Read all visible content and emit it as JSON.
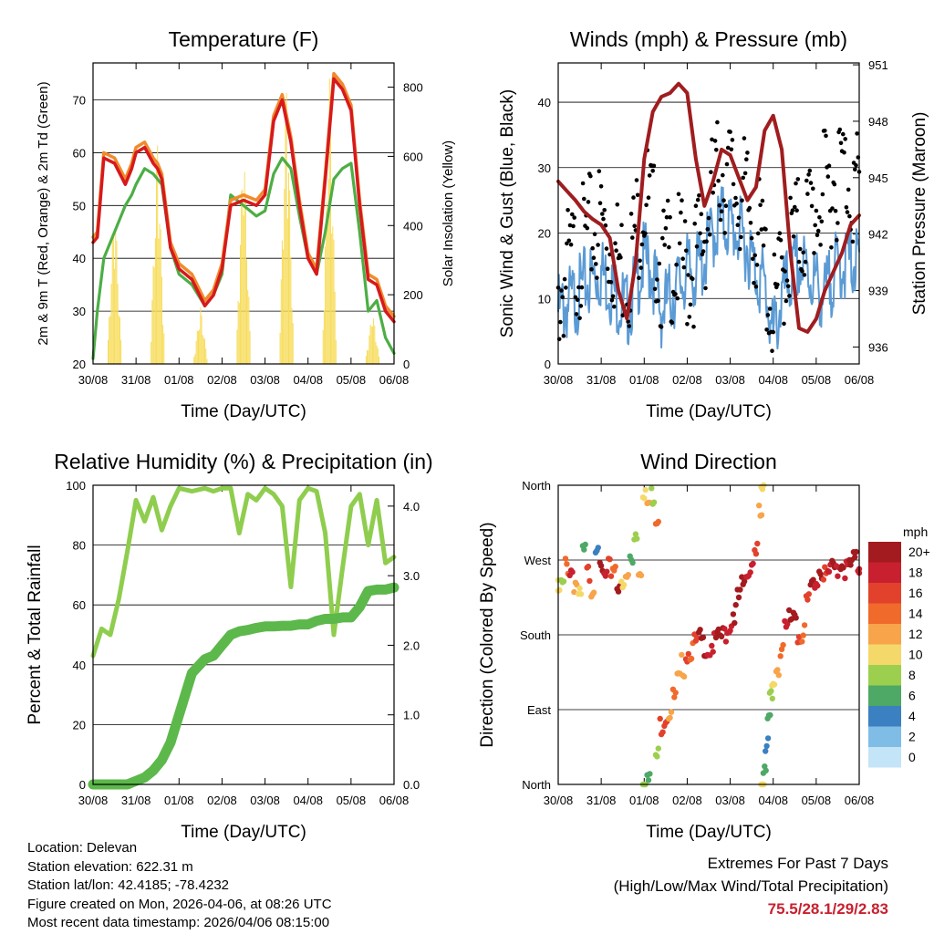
{
  "chart_data": [
    {
      "type": "line",
      "id": "temperature",
      "title": "Temperature (F)",
      "xlabel": "Time (Day/UTC)",
      "ylabel_left": "2m & 9m T (Red, Orange) & 2m Td (Green)",
      "ylabel_right": "Solar Insolation (Yellow)",
      "x_ticks": [
        "30/08",
        "31/08",
        "01/08",
        "02/08",
        "03/08",
        "04/08",
        "05/08",
        "06/08"
      ],
      "ylim_left": [
        20,
        77
      ],
      "yticks_left": [
        20,
        30,
        40,
        50,
        60,
        70
      ],
      "ylim_right": [
        0,
        870
      ],
      "yticks_right": [
        0,
        200,
        400,
        600,
        800
      ],
      "x": [
        0,
        0.1,
        0.25,
        0.5,
        0.75,
        0.9,
        1.0,
        1.2,
        1.4,
        1.5,
        1.6,
        1.8,
        2.0,
        2.3,
        2.6,
        2.8,
        3.0,
        3.2,
        3.5,
        3.8,
        4.0,
        4.2,
        4.4,
        4.6,
        4.8,
        5.0,
        5.2,
        5.4,
        5.6,
        5.8,
        6.0,
        6.2,
        6.4,
        6.6,
        6.8,
        7.0
      ],
      "series": [
        {
          "name": "2m T",
          "color": "#d7191c",
          "values": [
            43,
            44,
            59,
            58,
            54,
            57,
            60,
            61,
            58,
            57,
            55,
            42,
            38,
            36,
            31,
            33,
            38,
            50,
            51,
            50,
            52,
            66,
            70,
            62,
            50,
            40,
            37,
            55,
            74,
            72,
            68,
            50,
            36,
            35,
            30,
            28
          ]
        },
        {
          "name": "9m T",
          "color": "#f08b2c",
          "values": [
            44,
            45,
            60,
            59,
            55,
            58,
            61,
            62,
            59,
            58,
            56,
            43,
            39,
            37,
            32,
            34,
            39,
            51,
            52,
            51,
            53,
            67,
            71,
            63,
            51,
            41,
            38,
            56,
            75,
            73,
            69,
            51,
            37,
            36,
            31,
            29
          ]
        },
        {
          "name": "2m Td",
          "color": "#4cae45",
          "values": [
            21,
            30,
            40,
            45,
            50,
            52,
            54,
            57,
            56,
            55,
            54,
            42,
            37,
            35,
            31,
            33,
            37,
            52,
            50,
            48,
            49,
            56,
            59,
            57,
            48,
            40,
            37,
            45,
            55,
            57,
            58,
            45,
            30,
            32,
            25,
            22
          ]
        },
        {
          "name": "Solar Insolation",
          "color": "#f7dc5a",
          "axis": "right",
          "peaks": [
            {
              "day": 0.5,
              "value": 500
            },
            {
              "day": 1.5,
              "value": 680
            },
            {
              "day": 2.5,
              "value": 170
            },
            {
              "day": 3.5,
              "value": 700
            },
            {
              "day": 4.5,
              "value": 880
            },
            {
              "day": 5.5,
              "value": 840
            },
            {
              "day": 6.5,
              "value": 160
            }
          ]
        }
      ]
    },
    {
      "type": "line",
      "id": "winds",
      "title": "Winds (mph) & Pressure (mb)",
      "xlabel": "Time (Day/UTC)",
      "ylabel_left": "Sonic Wind & Gust (Blue, Black)",
      "ylabel_right": "Station Pressure (Maroon)",
      "x_ticks": [
        "30/08",
        "31/08",
        "01/08",
        "02/08",
        "03/08",
        "04/08",
        "05/08",
        "06/08"
      ],
      "ylim_left": [
        0,
        46
      ],
      "yticks_left": [
        0,
        10,
        20,
        30,
        40
      ],
      "ylim_right": [
        935.1,
        951.1
      ],
      "yticks_right": [
        936,
        939,
        942,
        945,
        948,
        951
      ],
      "x": [
        0,
        0.2,
        0.4,
        0.6,
        0.8,
        1.0,
        1.2,
        1.4,
        1.6,
        1.8,
        2.0,
        2.2,
        2.4,
        2.6,
        2.8,
        3.0,
        3.2,
        3.4,
        3.6,
        3.8,
        4.0,
        4.2,
        4.4,
        4.6,
        4.8,
        5.0,
        5.2,
        5.4,
        5.6,
        5.8,
        6.0,
        6.2,
        6.4,
        6.6,
        6.8,
        7.0
      ],
      "series": [
        {
          "name": "Sonic Wind",
          "color": "#5b9bd5",
          "values": [
            10,
            11,
            12,
            14,
            15,
            16,
            14,
            12,
            10,
            14,
            18,
            16,
            10,
            12,
            14,
            16,
            16,
            18,
            22,
            24,
            23,
            22,
            20,
            16,
            14,
            6,
            12,
            15,
            17,
            16,
            14,
            12,
            16,
            17,
            18,
            17
          ]
        },
        {
          "name": "Gust",
          "color": "#000000",
          "values": [
            14,
            18,
            20,
            22,
            24,
            26,
            22,
            20,
            18,
            24,
            30,
            26,
            18,
            20,
            20,
            18,
            20,
            24,
            30,
            34,
            32,
            30,
            28,
            24,
            20,
            10,
            18,
            22,
            24,
            26,
            28,
            30,
            32,
            34,
            32,
            30
          ]
        },
        {
          "name": "Station Pressure",
          "color": "#a01d1f",
          "axis": "right",
          "values": [
            944.8,
            944.3,
            943.8,
            943.2,
            942.8,
            942.5,
            941.8,
            939.0,
            937.5,
            940.5,
            946.0,
            948.5,
            949.3,
            949.5,
            950.0,
            949.5,
            946.0,
            943.5,
            944.8,
            946.5,
            946.2,
            945.0,
            943.8,
            944.5,
            947.5,
            948.3,
            946.5,
            941.0,
            937.0,
            936.8,
            937.5,
            939.0,
            940.0,
            941.0,
            942.5,
            943.0
          ]
        }
      ]
    },
    {
      "type": "line",
      "id": "humidity",
      "title": "Relative Humidity (%) & Precipitation (in)",
      "xlabel": "Time (Day/UTC)",
      "ylabel_left": "Percent & Total Rainfall",
      "x_ticks": [
        "30/08",
        "31/08",
        "01/08",
        "02/08",
        "03/08",
        "04/08",
        "05/08",
        "06/08"
      ],
      "ylim_left": [
        0,
        100
      ],
      "yticks_left": [
        0,
        20,
        40,
        60,
        80,
        100
      ],
      "ylim_right": [
        0,
        4.3
      ],
      "yticks_right": [
        "0.0",
        "1.0",
        "2.0",
        "3.0",
        "4.0"
      ],
      "x": [
        0,
        0.2,
        0.4,
        0.6,
        0.8,
        1.0,
        1.2,
        1.4,
        1.6,
        1.8,
        2.0,
        2.3,
        2.6,
        2.8,
        3.0,
        3.2,
        3.4,
        3.6,
        3.8,
        4.0,
        4.2,
        4.4,
        4.6,
        4.8,
        5.0,
        5.2,
        5.4,
        5.6,
        5.8,
        6.0,
        6.2,
        6.4,
        6.6,
        6.8,
        7.0
      ],
      "series": [
        {
          "name": "Relative Humidity",
          "color": "#8fcd4e",
          "values": [
            43,
            52,
            50,
            62,
            78,
            95,
            88,
            96,
            85,
            93,
            99,
            98,
            99,
            98,
            99,
            99,
            84,
            97,
            95,
            99,
            97,
            93,
            66,
            95,
            99,
            98,
            84,
            50,
            72,
            93,
            97,
            80,
            95,
            74,
            76
          ]
        },
        {
          "name": "Total Rainfall",
          "color": "#5cb84a",
          "axis": "right",
          "values": [
            0,
            0,
            0,
            0,
            0,
            0.05,
            0.1,
            0.2,
            0.35,
            0.6,
            1.0,
            1.6,
            1.8,
            1.85,
            2.0,
            2.15,
            2.2,
            2.22,
            2.25,
            2.27,
            2.27,
            2.28,
            2.28,
            2.3,
            2.3,
            2.35,
            2.38,
            2.38,
            2.4,
            2.4,
            2.55,
            2.78,
            2.8,
            2.8,
            2.83
          ]
        }
      ]
    },
    {
      "type": "scatter",
      "id": "wind-direction",
      "title": "Wind Direction",
      "xlabel": "Time (Day/UTC)",
      "ylabel": "Direction (Colored By Speed)",
      "x_ticks": [
        "30/08",
        "31/08",
        "01/08",
        "02/08",
        "03/08",
        "04/08",
        "05/08",
        "06/08"
      ],
      "y_ticks": [
        "North",
        "East",
        "South",
        "West",
        "North"
      ],
      "ylim": [
        0,
        360
      ],
      "points": [
        {
          "x": 0.0,
          "dir": 240,
          "speed": 10
        },
        {
          "x": 0.1,
          "dir": 245,
          "speed": 8
        },
        {
          "x": 0.2,
          "dir": 270,
          "speed": 14
        },
        {
          "x": 0.3,
          "dir": 265,
          "speed": 18
        },
        {
          "x": 0.4,
          "dir": 250,
          "speed": 12
        },
        {
          "x": 0.5,
          "dir": 230,
          "speed": 10
        },
        {
          "x": 0.6,
          "dir": 285,
          "speed": 6
        },
        {
          "x": 0.7,
          "dir": 260,
          "speed": 16
        },
        {
          "x": 0.8,
          "dir": 245,
          "speed": 12
        },
        {
          "x": 0.9,
          "dir": 300,
          "speed": 4
        },
        {
          "x": 1.0,
          "dir": 260,
          "speed": 20
        },
        {
          "x": 1.1,
          "dir": 255,
          "speed": 18
        },
        {
          "x": 1.2,
          "dir": 265,
          "speed": 16
        },
        {
          "x": 1.3,
          "dir": 270,
          "speed": 14
        },
        {
          "x": 1.4,
          "dir": 250,
          "speed": 20
        },
        {
          "x": 1.5,
          "dir": 240,
          "speed": 10
        },
        {
          "x": 1.6,
          "dir": 255,
          "speed": 12
        },
        {
          "x": 1.7,
          "dir": 280,
          "speed": 6
        },
        {
          "x": 1.8,
          "dir": 310,
          "speed": 8
        },
        {
          "x": 1.9,
          "dir": 270,
          "speed": 12
        },
        {
          "x": 2.0,
          "dir": 350,
          "speed": 10
        },
        {
          "x": 2.1,
          "dir": 345,
          "speed": 12
        },
        {
          "x": 2.2,
          "dir": 355,
          "speed": 8
        },
        {
          "x": 2.3,
          "dir": 330,
          "speed": 14
        },
        {
          "x": 2.0,
          "dir": 5,
          "speed": 8
        },
        {
          "x": 2.1,
          "dir": 10,
          "speed": 6
        },
        {
          "x": 2.3,
          "dir": 40,
          "speed": 8
        },
        {
          "x": 2.4,
          "dir": 80,
          "speed": 16
        },
        {
          "x": 2.5,
          "dir": 90,
          "speed": 16
        },
        {
          "x": 2.6,
          "dir": 95,
          "speed": 12
        },
        {
          "x": 2.7,
          "dir": 110,
          "speed": 14
        },
        {
          "x": 2.8,
          "dir": 130,
          "speed": 12
        },
        {
          "x": 2.9,
          "dir": 150,
          "speed": 12
        },
        {
          "x": 3.0,
          "dir": 165,
          "speed": 16
        },
        {
          "x": 3.1,
          "dir": 170,
          "speed": 14
        },
        {
          "x": 3.2,
          "dir": 175,
          "speed": 16
        },
        {
          "x": 3.3,
          "dir": 180,
          "speed": 20
        },
        {
          "x": 3.4,
          "dir": 175,
          "speed": 20
        },
        {
          "x": 3.5,
          "dir": 170,
          "speed": 18
        },
        {
          "x": 3.6,
          "dir": 175,
          "speed": 18
        },
        {
          "x": 3.7,
          "dir": 180,
          "speed": 20
        },
        {
          "x": 3.8,
          "dir": 185,
          "speed": 20
        },
        {
          "x": 3.9,
          "dir": 190,
          "speed": 18
        },
        {
          "x": 4.0,
          "dir": 200,
          "speed": 18
        },
        {
          "x": 4.1,
          "dir": 215,
          "speed": 20
        },
        {
          "x": 4.2,
          "dir": 230,
          "speed": 20
        },
        {
          "x": 4.3,
          "dir": 245,
          "speed": 20
        },
        {
          "x": 4.4,
          "dir": 260,
          "speed": 18
        },
        {
          "x": 4.5,
          "dir": 275,
          "speed": 18
        },
        {
          "x": 4.6,
          "dir": 290,
          "speed": 16
        },
        {
          "x": 4.7,
          "dir": 330,
          "speed": 12
        },
        {
          "x": 4.75,
          "dir": 355,
          "speed": 10
        },
        {
          "x": 4.75,
          "dir": 5,
          "speed": 10
        },
        {
          "x": 4.8,
          "dir": 30,
          "speed": 6
        },
        {
          "x": 4.85,
          "dir": 60,
          "speed": 4
        },
        {
          "x": 4.9,
          "dir": 80,
          "speed": 6
        },
        {
          "x": 4.95,
          "dir": 110,
          "speed": 8
        },
        {
          "x": 5.0,
          "dir": 130,
          "speed": 10
        },
        {
          "x": 5.1,
          "dir": 150,
          "speed": 12
        },
        {
          "x": 5.2,
          "dir": 170,
          "speed": 14
        },
        {
          "x": 5.3,
          "dir": 190,
          "speed": 18
        },
        {
          "x": 5.4,
          "dir": 205,
          "speed": 20
        },
        {
          "x": 5.5,
          "dir": 215,
          "speed": 20
        },
        {
          "x": 5.6,
          "dir": 190,
          "speed": 16
        },
        {
          "x": 5.7,
          "dir": 185,
          "speed": 14
        },
        {
          "x": 5.8,
          "dir": 225,
          "speed": 16
        },
        {
          "x": 5.9,
          "dir": 245,
          "speed": 20
        },
        {
          "x": 6.0,
          "dir": 255,
          "speed": 18
        },
        {
          "x": 6.1,
          "dir": 265,
          "speed": 20
        },
        {
          "x": 6.2,
          "dir": 255,
          "speed": 16
        },
        {
          "x": 6.3,
          "dir": 260,
          "speed": 18
        },
        {
          "x": 6.4,
          "dir": 265,
          "speed": 20
        },
        {
          "x": 6.5,
          "dir": 270,
          "speed": 18
        },
        {
          "x": 6.6,
          "dir": 275,
          "speed": 20
        },
        {
          "x": 6.7,
          "dir": 265,
          "speed": 18
        },
        {
          "x": 6.8,
          "dir": 270,
          "speed": 20
        },
        {
          "x": 6.9,
          "dir": 275,
          "speed": 20
        },
        {
          "x": 7.0,
          "dir": 270,
          "speed": 18
        }
      ],
      "colorbar": {
        "label": "mph",
        "ticks": [
          "20+",
          "18",
          "16",
          "14",
          "12",
          "10",
          "8",
          "6",
          "4",
          "2",
          "0"
        ],
        "colors": [
          "#a31a1f",
          "#c8202f",
          "#e2412c",
          "#f06a2c",
          "#f7a44a",
          "#f4d96a",
          "#9ccf4e",
          "#4ea866",
          "#3b80c0",
          "#80bde6",
          "#c4e4f7"
        ]
      }
    }
  ],
  "footer": {
    "location": "Location: Delevan",
    "elevation": "Station elevation: 622.31 m",
    "latlon": "Station lat/lon: 42.4185; -78.4232",
    "created": "Figure created on Mon, 2026-04-06, at 08:26 UTC",
    "recent": "Most recent data timestamp: 2026/04/06 08:15:00",
    "extremes_title": "Extremes For Past 7 Days",
    "extremes_legend": "(High/Low/Max Wind/Total Precipitation)",
    "extremes_values": "75.5/28.1/29/2.83"
  }
}
